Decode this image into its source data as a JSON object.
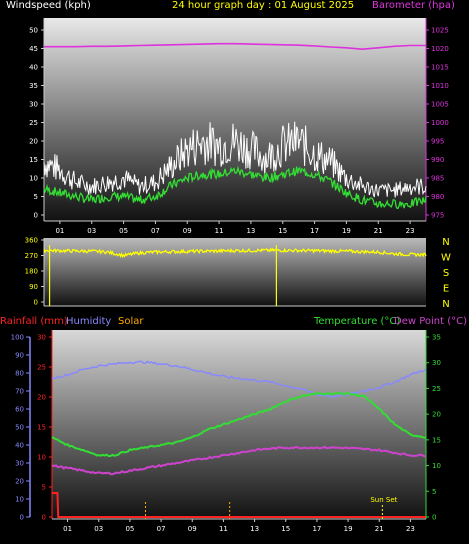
{
  "colors": {
    "wind_axis": "#ffffff",
    "gust": "#ffffff",
    "windspeed": "#33dd33",
    "barometer": "#dd33dd",
    "title": "#ffff00",
    "direction": "#ffff00",
    "rainfall": "#ff2222",
    "humidity": "#8888ff",
    "solar": "#ffaa00",
    "temperature": "#33dd33",
    "dewpoint": "#cc44cc",
    "sunset": "#ffff00"
  },
  "top": {
    "title": "24 hour graph day : 01 August 2025",
    "left_label": "Windspeed (kph)",
    "right_label": "Barometer (hpa)"
  },
  "bottom": {
    "rain_label": "Rainfall (mm)",
    "humidity_label": "Humidity",
    "solar_label": "Solar",
    "temp_label": "Temperature (°C)",
    "dew_label": "Dew Point (°C)",
    "sunset_label": "Sun Set"
  },
  "chart_data": [
    {
      "type": "line",
      "title": "24 hour graph day : 01 August 2025",
      "x_ticks": [
        "01",
        "03",
        "05",
        "07",
        "09",
        "11",
        "13",
        "15",
        "17",
        "19",
        "21",
        "23"
      ],
      "x_hours": [
        0,
        1,
        2,
        3,
        4,
        5,
        6,
        7,
        8,
        9,
        10,
        11,
        12,
        13,
        14,
        15,
        16,
        17,
        18,
        19,
        20,
        21,
        22,
        23,
        24
      ],
      "y_left": {
        "label": "Windspeed (kph)",
        "range": [
          0,
          50
        ],
        "ticks": [
          0,
          5,
          10,
          15,
          20,
          25,
          30,
          35,
          40,
          45,
          50
        ]
      },
      "y_right": {
        "label": "Barometer (hpa)",
        "range": [
          975,
          1025
        ],
        "ticks": [
          975,
          980,
          985,
          990,
          995,
          1000,
          1005,
          1010,
          1015,
          1020,
          1025
        ]
      },
      "series": [
        {
          "name": "Gust",
          "axis": "left",
          "values": [
            13,
            11,
            8,
            7,
            8,
            9,
            7,
            8,
            12,
            16,
            18,
            17,
            18,
            16,
            14,
            17,
            18,
            15,
            13,
            9,
            7,
            6,
            6,
            7,
            7
          ]
        },
        {
          "name": "Windspeed",
          "axis": "left",
          "values": [
            7,
            6,
            5,
            4,
            5,
            5,
            4,
            5,
            8,
            10,
            11,
            11,
            12,
            11,
            10,
            11,
            12,
            11,
            9,
            6,
            4,
            3,
            3,
            3,
            4
          ]
        },
        {
          "name": "Barometer",
          "axis": "right",
          "values": [
            1020.5,
            1020.5,
            1020.5,
            1020.6,
            1020.6,
            1020.7,
            1020.8,
            1020.9,
            1021,
            1021.1,
            1021.2,
            1021.3,
            1021.3,
            1021.2,
            1021.1,
            1021,
            1020.9,
            1020.7,
            1020.4,
            1020.2,
            1019.8,
            1020.2,
            1020.6,
            1020.8,
            1020.8
          ]
        }
      ]
    },
    {
      "type": "line",
      "x_ticks": [
        "01",
        "03",
        "05",
        "07",
        "09",
        "11",
        "13",
        "15",
        "17",
        "19",
        "21",
        "23"
      ],
      "y_left": {
        "range": [
          0,
          360
        ],
        "ticks": [
          0,
          90,
          180,
          270,
          360
        ]
      },
      "y_right_labels": [
        "N",
        "W",
        "S",
        "E",
        "N"
      ],
      "series": [
        {
          "name": "Wind direction",
          "values": [
            300,
            298,
            296,
            295,
            290,
            270,
            285,
            290,
            292,
            294,
            295,
            296,
            298,
            299,
            300,
            300,
            299,
            298,
            296,
            295,
            292,
            290,
            280,
            275,
            275
          ]
        }
      ],
      "spikes_hours": [
        0.35,
        14.6
      ]
    },
    {
      "type": "line",
      "x_ticks": [
        "01",
        "03",
        "05",
        "07",
        "09",
        "11",
        "13",
        "15",
        "17",
        "19",
        "21",
        "23"
      ],
      "y_left_outer": {
        "label": "Humidity",
        "range": [
          0,
          100
        ],
        "ticks": [
          0,
          10,
          20,
          30,
          40,
          50,
          60,
          70,
          80,
          90,
          100
        ]
      },
      "y_left_inner": {
        "label": "Rainfall (mm)",
        "range": [
          0,
          30
        ],
        "ticks": [
          0,
          5,
          10,
          15,
          20,
          25,
          30
        ]
      },
      "y_right": {
        "label": "Temperature (°C)",
        "range": [
          0,
          35
        ],
        "ticks": [
          0,
          5,
          10,
          15,
          20,
          25,
          30,
          35
        ]
      },
      "series": [
        {
          "name": "Humidity",
          "axis": "left_outer",
          "values": [
            77,
            79,
            82,
            84,
            85,
            86,
            86,
            85,
            84,
            82,
            80,
            78,
            77,
            76,
            75,
            73,
            71,
            68,
            67,
            68,
            70,
            72,
            75,
            79,
            82
          ]
        },
        {
          "name": "Temperature",
          "axis": "right",
          "values": [
            15.5,
            14,
            13,
            12,
            12,
            13,
            13.5,
            14,
            14.5,
            15.5,
            17,
            18,
            19,
            20,
            21,
            22.5,
            23.5,
            24,
            24,
            24,
            23.5,
            21,
            18,
            16,
            15.5
          ]
        },
        {
          "name": "Dew Point",
          "axis": "right",
          "values": [
            10,
            9.5,
            9,
            8.5,
            8.5,
            9,
            9.5,
            10,
            10.5,
            11,
            11.5,
            12,
            12.5,
            13,
            13.3,
            13.5,
            13.5,
            13.5,
            13.5,
            13.4,
            13.2,
            13,
            12.5,
            12,
            12
          ]
        },
        {
          "name": "Rainfall",
          "axis": "left_inner",
          "values": [
            4,
            4,
            0,
            0,
            0,
            0,
            0,
            0,
            0,
            0,
            0,
            0,
            0,
            0,
            0,
            0,
            0,
            0,
            0,
            0,
            0,
            0,
            0,
            0,
            0
          ]
        }
      ],
      "solar_spikes_hours": [
        6,
        11.4
      ],
      "sunset_hour": 21.2
    }
  ]
}
